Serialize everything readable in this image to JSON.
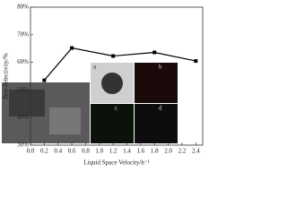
{
  "chart_data": {
    "type": "line",
    "x_label": "Liquid Space Velocity/h⁻¹",
    "y_label": "Ben-Selectivity/%",
    "x": [
      0.2,
      0.6,
      1.2,
      1.8,
      2.4
    ],
    "series": [
      {
        "name": "Ben-Selectivity",
        "color": "#000000",
        "values": [
          53.5,
          65.2,
          62.3,
          63.6,
          60.5
        ]
      }
    ],
    "xlim": [
      0,
      2.5
    ],
    "ylim": [
      30,
      80
    ],
    "xticks": [
      {
        "value": 0,
        "label": "0.0"
      },
      {
        "value": 0.2,
        "label": "0.2"
      },
      {
        "value": 0.4,
        "label": "0.4"
      },
      {
        "value": 0.6,
        "label": "0.6"
      },
      {
        "value": 0.8,
        "label": "0.8"
      },
      {
        "value": 1.0,
        "label": "1.0"
      },
      {
        "value": 1.2,
        "label": "1.2"
      },
      {
        "value": 1.4,
        "label": "1.4"
      },
      {
        "value": 1.6,
        "label": "1.6"
      },
      {
        "value": 1.8,
        "label": "1.8"
      },
      {
        "value": 2.0,
        "label": "2.0"
      },
      {
        "value": 2.2,
        "label": "2.2"
      },
      {
        "value": 2.4,
        "label": "2.4"
      }
    ],
    "yticks": [
      {
        "value": 30,
        "label": "30%"
      },
      {
        "value": 40,
        "label": "40%"
      },
      {
        "value": 50,
        "label": "50%"
      },
      {
        "value": 60,
        "label": "60%"
      },
      {
        "value": 70,
        "label": "70%"
      },
      {
        "value": 80,
        "label": "80%"
      }
    ],
    "grid": false
  },
  "insets": {
    "labels": [
      "a",
      "b",
      "c",
      "d"
    ]
  }
}
